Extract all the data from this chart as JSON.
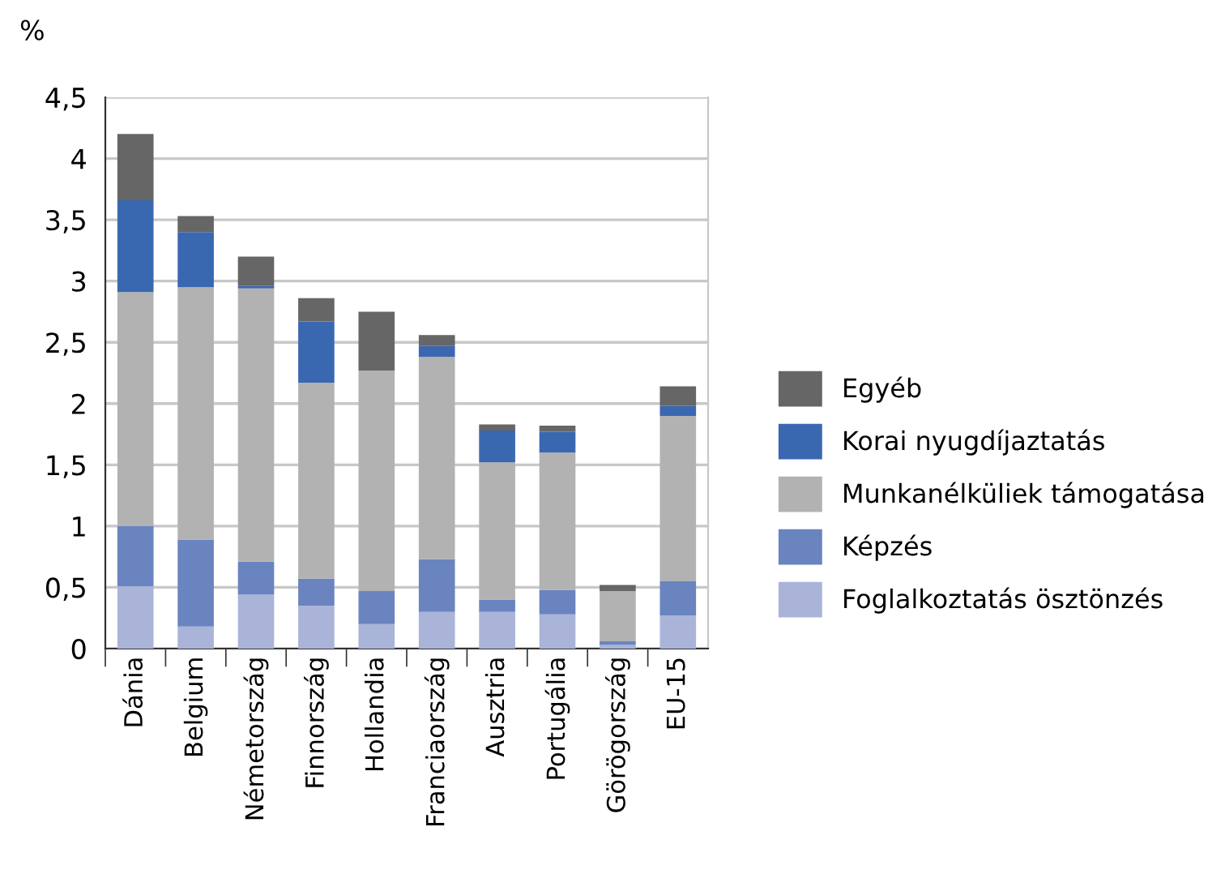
{
  "chart_data": {
    "type": "bar",
    "stacked": true,
    "ylabel": "%",
    "categories": [
      "Dánia",
      "Belgium",
      "Németország",
      "Finnország",
      "Hollandia",
      "Franciaország",
      "Ausztria",
      "Portugália",
      "Görögország",
      "EU-15"
    ],
    "series": [
      {
        "name": "Foglalkoztatás ösztönzés",
        "color": "#aab4d8",
        "values": [
          0.51,
          0.18,
          0.44,
          0.35,
          0.2,
          0.3,
          0.3,
          0.28,
          0.03,
          0.27
        ]
      },
      {
        "name": "Képzés",
        "color": "#6a84c0",
        "values": [
          0.49,
          0.71,
          0.27,
          0.22,
          0.27,
          0.43,
          0.1,
          0.2,
          0.03,
          0.28
        ]
      },
      {
        "name": "Munkanélküliek támogatása",
        "color": "#b2b2b2",
        "values": [
          1.91,
          2.06,
          2.23,
          1.6,
          1.8,
          1.65,
          1.12,
          1.12,
          0.41,
          1.35
        ]
      },
      {
        "name": "Korai nyugdíjaztatás",
        "color": "#3a68b0",
        "values": [
          0.75,
          0.45,
          0.02,
          0.5,
          0,
          0.09,
          0.26,
          0.17,
          0,
          0.08
        ]
      },
      {
        "name": "Egyéb",
        "color": "#666666",
        "values": [
          0.54,
          0.13,
          0.24,
          0.19,
          0.48,
          0.09,
          0.05,
          0.05,
          0.05,
          0.16
        ]
      }
    ],
    "ylim": [
      0,
      4.5
    ],
    "yticks": [
      0,
      {
        "value": 0.5,
        "label": "0,5"
      },
      1,
      {
        "value": 1.5,
        "label": "1,5"
      },
      2,
      {
        "value": 2.5,
        "label": "2,5"
      },
      3,
      {
        "value": 3.5,
        "label": "3,5"
      },
      4,
      {
        "value": 4.5,
        "label": "4,5"
      }
    ],
    "grid": "y",
    "legend": "right"
  }
}
